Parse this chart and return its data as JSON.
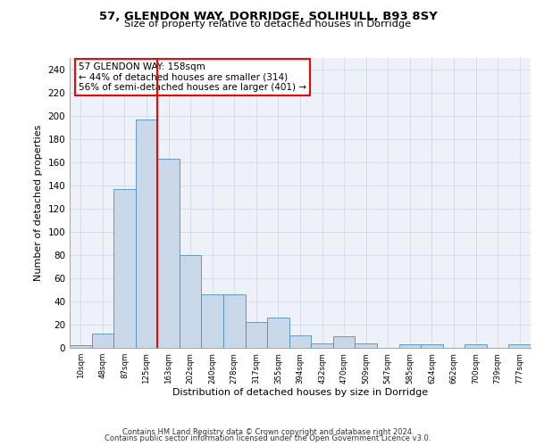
{
  "title1": "57, GLENDON WAY, DORRIDGE, SOLIHULL, B93 8SY",
  "title2": "Size of property relative to detached houses in Dorridge",
  "xlabel": "Distribution of detached houses by size in Dorridge",
  "ylabel": "Number of detached properties",
  "categories": [
    "10sqm",
    "48sqm",
    "87sqm",
    "125sqm",
    "163sqm",
    "202sqm",
    "240sqm",
    "278sqm",
    "317sqm",
    "355sqm",
    "394sqm",
    "432sqm",
    "470sqm",
    "509sqm",
    "547sqm",
    "585sqm",
    "624sqm",
    "662sqm",
    "700sqm",
    "739sqm",
    "777sqm"
  ],
  "values": [
    2,
    12,
    137,
    197,
    163,
    80,
    46,
    46,
    22,
    26,
    11,
    4,
    10,
    4,
    0,
    3,
    3,
    0,
    3,
    0,
    3
  ],
  "bar_color": "#c8d8e8",
  "bar_edge_color": "#4a90c4",
  "vline_color": "red",
  "vline_x_index": 4,
  "annotation_text": "57 GLENDON WAY: 158sqm\n← 44% of detached houses are smaller (314)\n56% of semi-detached houses are larger (401) →",
  "annotation_box_color": "white",
  "annotation_box_edge": "red",
  "ylim": [
    0,
    250
  ],
  "yticks": [
    0,
    20,
    40,
    60,
    80,
    100,
    120,
    140,
    160,
    180,
    200,
    220,
    240
  ],
  "grid_color": "#d0daea",
  "bg_color": "#eef2f8",
  "footer1": "Contains HM Land Registry data © Crown copyright and database right 2024.",
  "footer2": "Contains public sector information licensed under the Open Government Licence v3.0."
}
